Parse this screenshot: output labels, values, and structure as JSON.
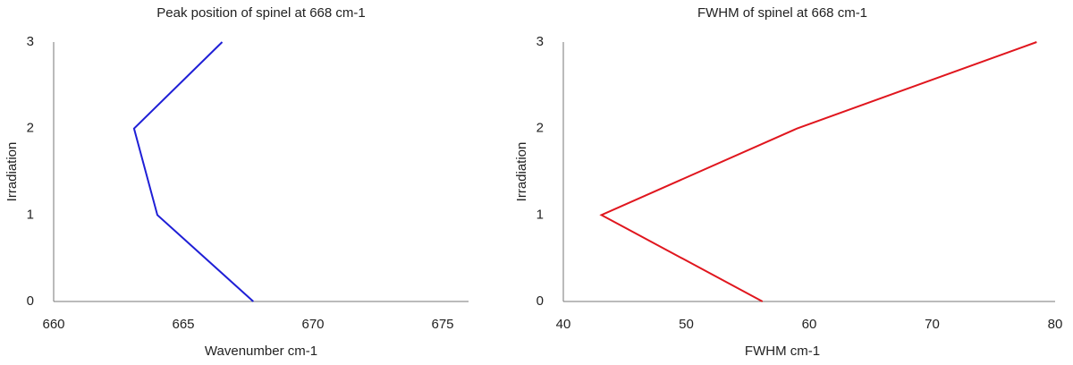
{
  "chart_data": [
    {
      "type": "line",
      "title": "Peak position of spinel at 668 cm-1",
      "x_label": "Wavenumber cm-1",
      "y_label": "Irradiation",
      "y": [
        0,
        1,
        2,
        3
      ],
      "series": [
        {
          "color": "#1f1fd6",
          "values": [
            667.7,
            664.0,
            663.1,
            666.5
          ]
        }
      ],
      "xlim": [
        660,
        676
      ],
      "xticks": [
        660,
        665,
        670,
        675
      ],
      "ylim": [
        0,
        3
      ],
      "yticks": [
        0,
        1,
        2,
        3
      ]
    },
    {
      "type": "line",
      "title": "FWHM of spinel at 668 cm-1",
      "x_label": "FWHM cm-1",
      "y_label": "Irradiation",
      "y": [
        0,
        1,
        2,
        3
      ],
      "series": [
        {
          "color": "#e0161e",
          "values": [
            56.2,
            43.1,
            59.0,
            78.5
          ]
        }
      ],
      "xlim": [
        40,
        80
      ],
      "xticks": [
        40,
        50,
        60,
        70,
        80
      ],
      "ylim": [
        0,
        3
      ],
      "yticks": [
        0,
        1,
        2,
        3
      ]
    }
  ]
}
